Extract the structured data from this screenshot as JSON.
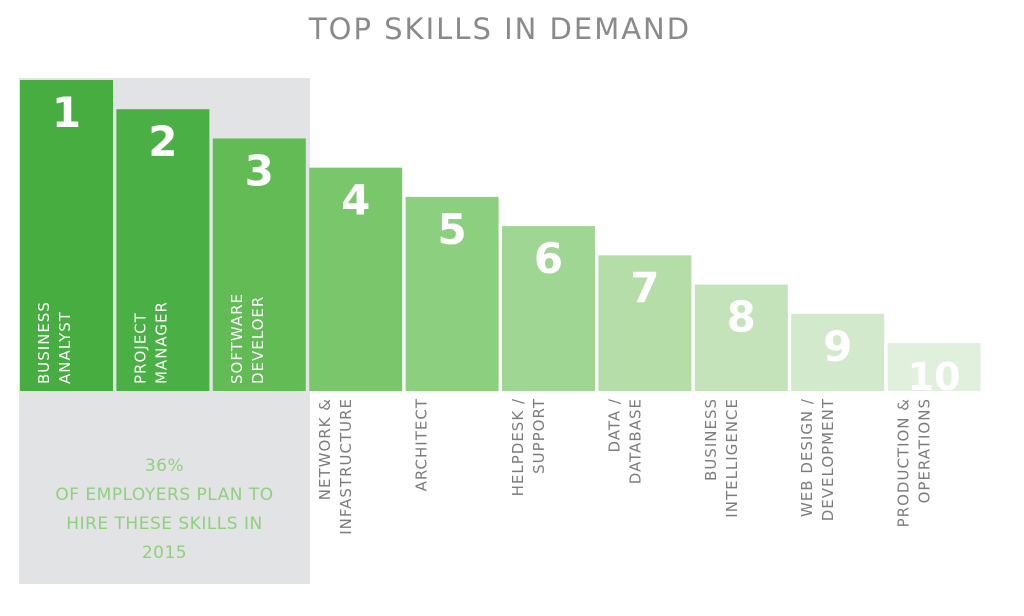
{
  "chart_data": {
    "type": "bar",
    "title": "TOP SKILLS IN DEMAND",
    "ranks": [
      "1",
      "2",
      "3",
      "4",
      "5",
      "6",
      "7",
      "8",
      "9",
      "10"
    ],
    "categories": [
      [
        "BUSINESS",
        "ANALYST"
      ],
      [
        "PROJECT",
        "MANAGER"
      ],
      [
        "SOFTWARE",
        "DEVELOER"
      ],
      [
        "NETWORK &",
        "INFASTRUCTURE"
      ],
      [
        "ARCHITECT"
      ],
      [
        "HELPDESK /",
        "SUPPORT"
      ],
      [
        "DATA /",
        "DATABASE"
      ],
      [
        "BUSINESS",
        "INTELLIGENCE"
      ],
      [
        "WEB DESIGN /",
        "DEVELOPMENT"
      ],
      [
        "PRODUCTION &",
        "OPERATIONS"
      ]
    ],
    "values": [
      10,
      9,
      8,
      7,
      6,
      5,
      4,
      3,
      2,
      1
    ],
    "colors": [
      "#47ad41",
      "#4aaf44",
      "#63bb56",
      "#79c66b",
      "#8ccf7f",
      "#a0d693",
      "#b4dda8",
      "#c4e3ba",
      "#d2e9cb",
      "#e1f0dc"
    ],
    "highlight_color": "#e2e3e5"
  },
  "callout": {
    "lines": [
      "36%",
      "OF EMPLOYERS PLAN TO",
      "HIRE THESE SKILLS IN",
      "2015"
    ]
  }
}
